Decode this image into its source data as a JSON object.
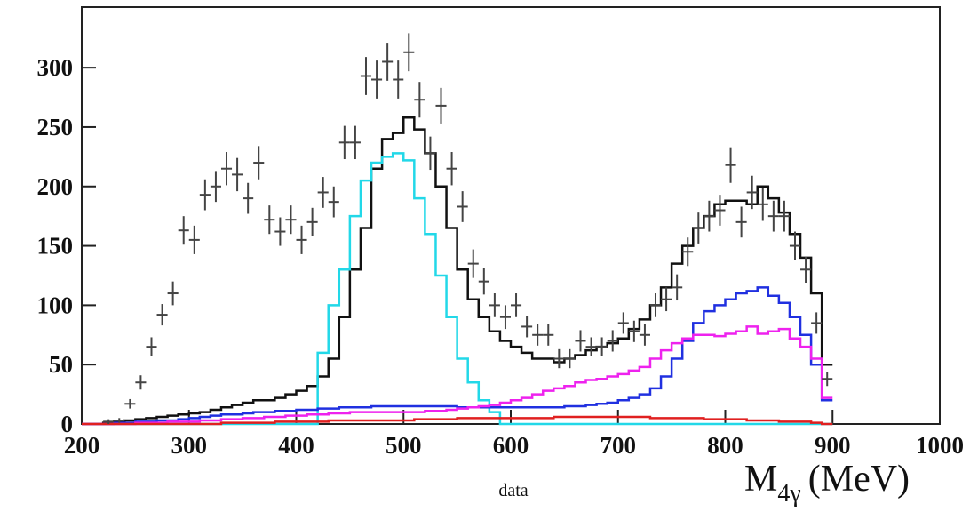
{
  "chart_data": {
    "type": "histogram",
    "bins": [
      200,
      210,
      220,
      230,
      240,
      250,
      260,
      270,
      280,
      290,
      300,
      310,
      320,
      330,
      340,
      350,
      360,
      370,
      380,
      390,
      400,
      410,
      420,
      430,
      440,
      450,
      460,
      470,
      480,
      490,
      500,
      510,
      520,
      530,
      540,
      550,
      560,
      570,
      580,
      590,
      600,
      610,
      620,
      630,
      640,
      650,
      660,
      670,
      680,
      690,
      700,
      710,
      720,
      730,
      740,
      750,
      760,
      770,
      780,
      790,
      800,
      810,
      820,
      830,
      840,
      850,
      860,
      870,
      880,
      890,
      900
    ],
    "series": [
      {
        "color": "#111111",
        "values": [
          0,
          0,
          1,
          2,
          3,
          4,
          5,
          6,
          7,
          8,
          9,
          10,
          12,
          14,
          16,
          18,
          20,
          20,
          22,
          25,
          28,
          32,
          40,
          55,
          90,
          130,
          165,
          215,
          240,
          245,
          258,
          248,
          228,
          200,
          165,
          130,
          105,
          90,
          78,
          70,
          65,
          60,
          55,
          55,
          52,
          55,
          58,
          62,
          65,
          68,
          72,
          80,
          88,
          100,
          115,
          135,
          150,
          165,
          175,
          185,
          188,
          188,
          185,
          200,
          190,
          178,
          160,
          140,
          110,
          50
        ]
      },
      {
        "color": "#22d8e8",
        "values": [
          0,
          0,
          0,
          0,
          0,
          0,
          0,
          0,
          0,
          0,
          0,
          0,
          0,
          0,
          0,
          0,
          0,
          0,
          0,
          0,
          0,
          0,
          60,
          100,
          130,
          175,
          205,
          220,
          225,
          228,
          222,
          190,
          160,
          125,
          90,
          55,
          35,
          20,
          10,
          0,
          0,
          0,
          0,
          0,
          0,
          0,
          0,
          0,
          0,
          0,
          0,
          0,
          0,
          0,
          0,
          0,
          0,
          0,
          0,
          0,
          0,
          0,
          0,
          0,
          0,
          0,
          0,
          0,
          0,
          0
        ]
      },
      {
        "color": "#2030e0",
        "values": [
          0,
          0,
          0,
          1,
          1,
          2,
          2,
          3,
          3,
          4,
          5,
          6,
          7,
          8,
          8,
          9,
          10,
          10,
          11,
          11,
          12,
          12,
          13,
          13,
          14,
          14,
          14,
          15,
          15,
          15,
          15,
          15,
          15,
          15,
          15,
          14,
          14,
          14,
          14,
          14,
          14,
          14,
          14,
          14,
          14,
          15,
          15,
          16,
          17,
          18,
          20,
          22,
          25,
          30,
          40,
          55,
          70,
          85,
          95,
          100,
          105,
          110,
          112,
          115,
          108,
          102,
          90,
          75,
          50,
          20
        ]
      },
      {
        "color": "#ee22ee",
        "values": [
          0,
          0,
          0,
          0,
          0,
          1,
          1,
          1,
          2,
          2,
          2,
          3,
          3,
          4,
          4,
          5,
          5,
          6,
          6,
          7,
          7,
          8,
          8,
          9,
          9,
          10,
          10,
          10,
          10,
          10,
          10,
          10,
          11,
          11,
          12,
          13,
          14,
          15,
          16,
          18,
          20,
          22,
          25,
          28,
          30,
          32,
          35,
          37,
          38,
          40,
          42,
          45,
          48,
          55,
          62,
          68,
          72,
          75,
          75,
          74,
          76,
          78,
          82,
          76,
          78,
          80,
          72,
          65,
          55,
          22
        ]
      },
      {
        "color": "#e02020",
        "values": [
          0,
          0,
          0,
          0,
          0,
          0,
          0,
          0,
          0,
          0,
          0,
          0,
          0,
          1,
          1,
          1,
          1,
          1,
          2,
          2,
          2,
          2,
          2,
          3,
          3,
          3,
          3,
          3,
          3,
          3,
          3,
          4,
          4,
          4,
          4,
          5,
          5,
          5,
          5,
          5,
          5,
          5,
          5,
          5,
          6,
          6,
          6,
          6,
          6,
          6,
          6,
          6,
          6,
          5,
          5,
          5,
          5,
          5,
          4,
          4,
          4,
          4,
          3,
          3,
          3,
          2,
          2,
          2,
          1,
          0
        ]
      }
    ],
    "points": {
      "name": "data",
      "color": "#444444",
      "x": [
        225,
        235,
        245,
        255,
        265,
        275,
        285,
        295,
        305,
        315,
        325,
        335,
        345,
        355,
        365,
        375,
        385,
        395,
        405,
        415,
        425,
        435,
        445,
        455,
        465,
        475,
        485,
        495,
        505,
        515,
        525,
        535,
        545,
        555,
        565,
        575,
        585,
        595,
        605,
        615,
        625,
        635,
        645,
        655,
        665,
        675,
        685,
        695,
        705,
        715,
        725,
        735,
        745,
        755,
        765,
        775,
        785,
        795,
        805,
        815,
        825,
        835,
        845,
        855,
        865,
        875,
        885,
        895
      ],
      "y": [
        2,
        3,
        17,
        35,
        65,
        92,
        110,
        163,
        155,
        193,
        200,
        215,
        210,
        190,
        220,
        172,
        162,
        172,
        155,
        170,
        195,
        187,
        237,
        237,
        293,
        290,
        305,
        290,
        313,
        273,
        228,
        268,
        215,
        183,
        135,
        120,
        100,
        90,
        100,
        82,
        75,
        75,
        55,
        55,
        70,
        65,
        65,
        70,
        85,
        78,
        75,
        100,
        105,
        115,
        145,
        165,
        175,
        180,
        218,
        170,
        195,
        185,
        175,
        175,
        150,
        130,
        85,
        38
      ],
      "err": [
        2,
        2,
        4,
        6,
        8,
        9,
        10,
        12,
        12,
        13,
        13,
        14,
        14,
        13,
        14,
        12,
        12,
        12,
        12,
        12,
        13,
        13,
        14,
        14,
        16,
        16,
        16,
        16,
        16,
        15,
        14,
        15,
        14,
        13,
        12,
        11,
        10,
        10,
        10,
        9,
        9,
        9,
        8,
        8,
        9,
        8,
        8,
        9,
        9,
        9,
        9,
        10,
        10,
        11,
        12,
        13,
        13,
        13,
        15,
        13,
        14,
        14,
        13,
        13,
        12,
        11,
        9,
        6
      ]
    },
    "xlim": [
      200,
      1000
    ],
    "xticks": [
      200,
      300,
      400,
      500,
      600,
      700,
      800,
      900,
      1000
    ],
    "ylim": [
      0,
      351
    ],
    "yticks": [
      0,
      50,
      100,
      150,
      200,
      250,
      300
    ],
    "x_label": {
      "main": "M",
      "sub": "4γ",
      "unit": "(MeV)"
    }
  }
}
